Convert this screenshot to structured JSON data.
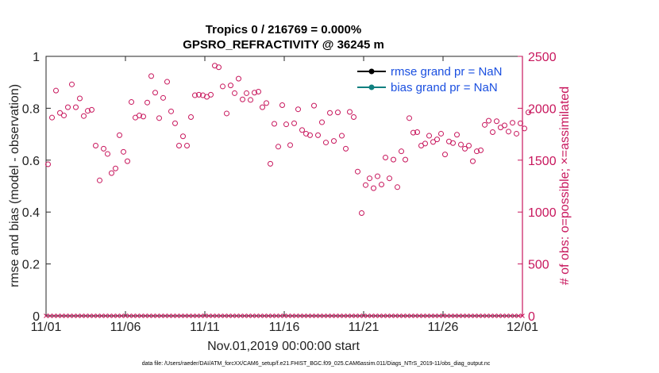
{
  "chart_data": {
    "type": "scatter",
    "title_line1": "Tropics 0 / 216769 = 0.000%",
    "title_line2": "GPSRO_REFRACTIVITY @ 36245 m",
    "xlabel": "Nov.01,2019 00:00:00 start",
    "ylabel_left": "rmse and bias (model - observation)",
    "ylabel_right": "# of obs: o=possible; ×=assimilated",
    "ylim_left": [
      0,
      1
    ],
    "ylim_right": [
      0,
      2500
    ],
    "xlim_days": [
      0,
      30
    ],
    "x_ticks": [
      {
        "day": 0,
        "label": "11/01"
      },
      {
        "day": 5,
        "label": "11/06"
      },
      {
        "day": 10,
        "label": "11/11"
      },
      {
        "day": 15,
        "label": "11/16"
      },
      {
        "day": 20,
        "label": "11/21"
      },
      {
        "day": 25,
        "label": "11/26"
      },
      {
        "day": 30,
        "label": "12/01"
      }
    ],
    "y_left_ticks": [
      "0",
      "0.2",
      "0.4",
      "0.6",
      "0.8",
      "1"
    ],
    "y_right_ticks": [
      "0",
      "500",
      "1000",
      "1500",
      "2000",
      "2500"
    ],
    "y_left_tick_values": [
      0,
      0.2,
      0.4,
      0.6,
      0.8,
      1
    ],
    "y_right_tick_values": [
      0,
      500,
      1000,
      1500,
      2000,
      2500
    ],
    "legend": [
      {
        "label": "rmse grand pr = NaN",
        "color": "#000000"
      },
      {
        "label": "bias grand pr = NaN",
        "color": "#108080"
      }
    ],
    "series": [
      {
        "name": "possible obs",
        "marker": "circle",
        "color": "#c8175d",
        "interval_days": 0.25,
        "values": [
          1460,
          1910,
          2170,
          1955,
          1930,
          2010,
          2230,
          2010,
          2095,
          1925,
          1975,
          1985,
          1640,
          1305,
          1610,
          1560,
          1375,
          1420,
          1740,
          1580,
          1490,
          2060,
          1910,
          1930,
          1920,
          2055,
          2310,
          2150,
          1905,
          2100,
          2255,
          1970,
          1855,
          1640,
          1730,
          1640,
          1915,
          2125,
          2130,
          2125,
          2110,
          2130,
          2410,
          2395,
          2210,
          1950,
          2220,
          2145,
          2285,
          2085,
          2145,
          2080,
          2150,
          2160,
          2010,
          2050,
          1465,
          1850,
          1630,
          2030,
          1845,
          1645,
          1855,
          1990,
          1790,
          1755,
          1740,
          2025,
          1740,
          1865,
          1670,
          1955,
          1685,
          1960,
          1735,
          1610,
          1965,
          1915,
          1390,
          990,
          1260,
          1325,
          1230,
          1345,
          1265,
          1525,
          1325,
          1505,
          1240,
          1585,
          1505,
          1905,
          1765,
          1770,
          1640,
          1660,
          1735,
          1675,
          1700,
          1755,
          1555,
          1680,
          1665,
          1745,
          1650,
          1610,
          1640,
          1490,
          1585,
          1595,
          1840,
          1880,
          1770,
          1875,
          1815,
          1835,
          1775,
          1860,
          1755,
          1855,
          1805,
          1960
        ]
      },
      {
        "name": "assimilated obs",
        "marker": "x",
        "color": "#c8175d",
        "interval_days": 0.25,
        "constant_value": 0
      },
      {
        "name": "rmse grand pr = NaN",
        "values": []
      },
      {
        "name": "bias grand pr = NaN",
        "values": []
      }
    ]
  },
  "footer": "data file: /Users/raeder/DAI/ATM_forcXX/CAM6_setup/f.e21.FHIST_BGC.f09_025.CAM6assim.011/Diags_NTrS_2019-11/obs_diag_output.nc",
  "colors": {
    "right_axis": "#c8175d",
    "legend_text": "#1a4fe0",
    "bias": "#108080",
    "rmse": "#000000"
  }
}
